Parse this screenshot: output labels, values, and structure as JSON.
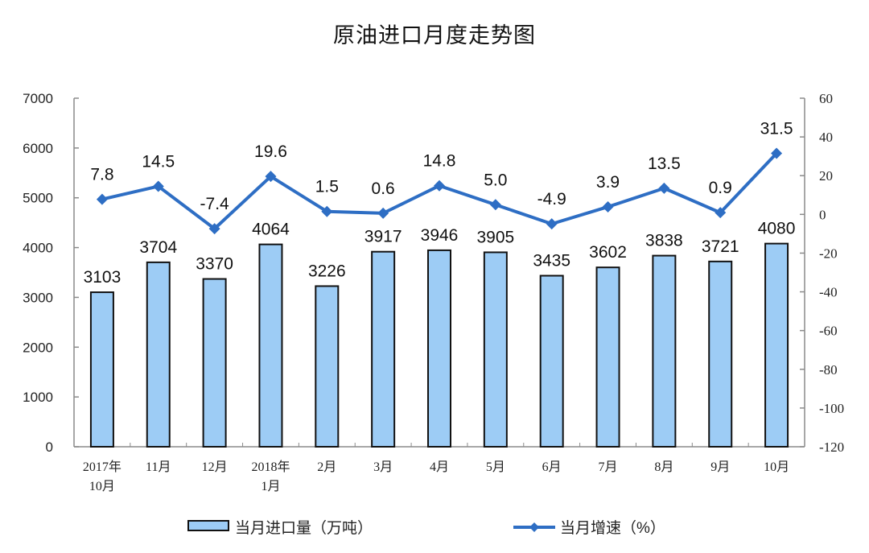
{
  "title": "原油进口月度走势图",
  "chart_data": {
    "type": "bar+line",
    "title": "原油进口月度走势图",
    "categories": [
      "2017年\n10月",
      "11月",
      "12月",
      "2018年\n1月",
      "2月",
      "3月",
      "4月",
      "5月",
      "6月",
      "7月",
      "8月",
      "9月",
      "10月"
    ],
    "series": [
      {
        "name": "当月进口量（万吨）",
        "type": "bar",
        "axis": "left",
        "color": "#9DCCF5",
        "values": [
          3103,
          3704,
          3370,
          4064,
          3226,
          3917,
          3946,
          3905,
          3435,
          3602,
          3838,
          3721,
          4080
        ]
      },
      {
        "name": "当月增速（%）",
        "type": "line",
        "axis": "right",
        "color": "#2E6EC4",
        "marker": "diamond",
        "values": [
          7.8,
          14.5,
          -7.4,
          19.6,
          1.5,
          0.6,
          14.8,
          5.0,
          -4.9,
          3.9,
          13.5,
          0.9,
          31.5
        ]
      }
    ],
    "left_axis": {
      "ylim": [
        0,
        7000
      ],
      "ticks": [
        0,
        1000,
        2000,
        3000,
        4000,
        5000,
        6000,
        7000
      ]
    },
    "right_axis": {
      "ylim": [
        -120,
        60
      ],
      "ticks": [
        -120,
        -100,
        -80,
        -60,
        -40,
        -20,
        0,
        20,
        40,
        60
      ]
    },
    "xlabel": "",
    "ylabel": "",
    "grid": false,
    "legend_position": "bottom"
  },
  "legend": {
    "bar_label": "当月进口量（万吨）",
    "line_label": "当月增速（%）"
  }
}
